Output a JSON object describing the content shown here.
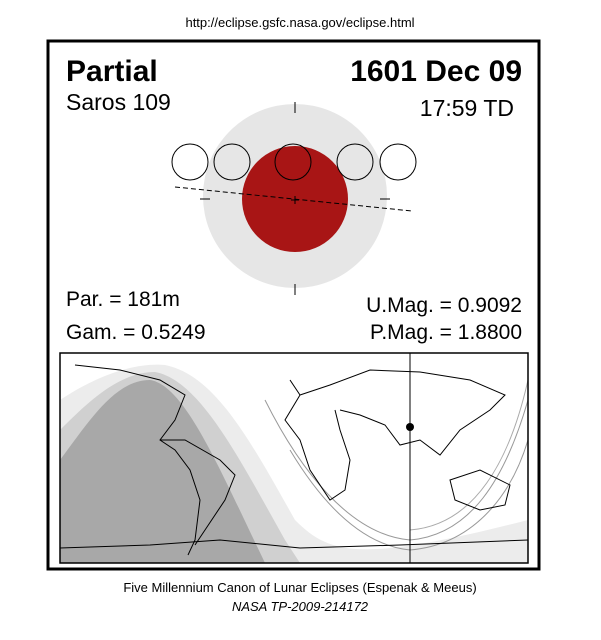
{
  "url": "http://eclipse.gsfc.nasa.gov/eclipse.html",
  "header": {
    "type": "Partial",
    "date": "1601 Dec 09",
    "saros": "Saros 109",
    "time": "17:59 TD"
  },
  "parameters": {
    "duration": "Par. = 181m",
    "gamma": "Gam. = 0.5249",
    "umbral_magnitude": "U.Mag. = 0.9092",
    "penumbral_magnitude": "P.Mag. = 1.8800"
  },
  "footer": {
    "canon": "Five Millennium Canon of Lunar Eclipses (Espenak & Meeus)",
    "report": "NASA TP-2009-214172"
  }
}
